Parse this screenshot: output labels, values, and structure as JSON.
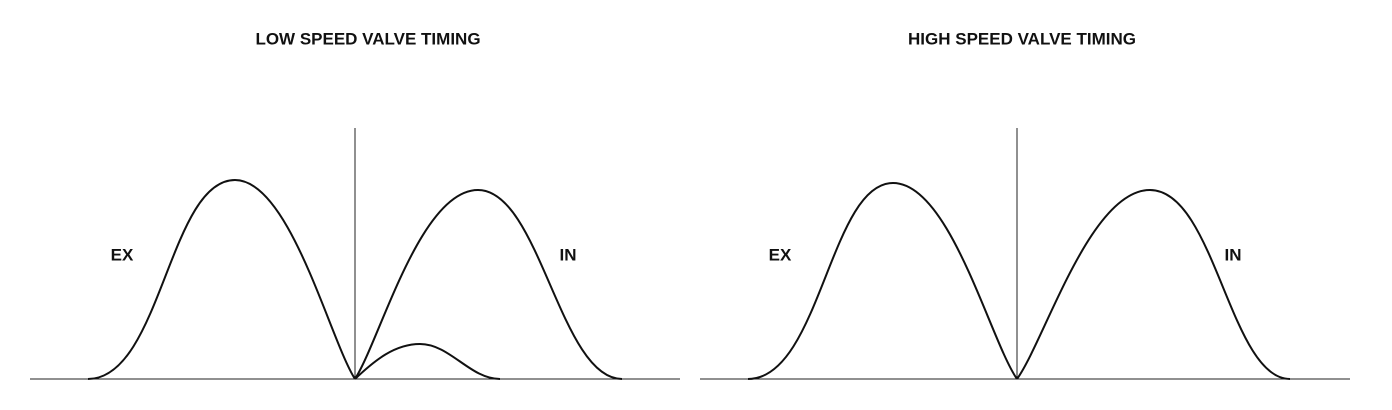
{
  "panels": [
    {
      "title": "LOW SPEED VALVE TIMING",
      "exhaust_label": "EX",
      "intake_label": "IN"
    },
    {
      "title": "HIGH SPEED VALVE TIMING",
      "exhaust_label": "EX",
      "intake_label": "IN"
    }
  ]
}
